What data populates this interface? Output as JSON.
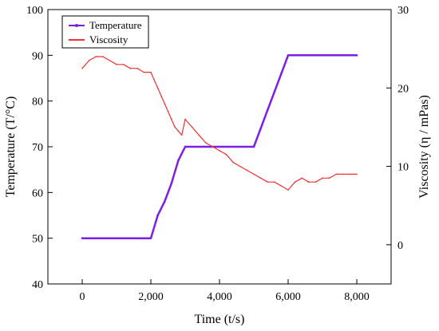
{
  "chart_data": {
    "type": "line",
    "xlabel": "Time (t/s)",
    "ylabel_left": "Temperature (T/°C)",
    "ylabel_right": "Viscosity (η / mPas)",
    "xlim": [
      -1000,
      9000
    ],
    "ylim_left": [
      40,
      100
    ],
    "ylim_right": [
      -5,
      30
    ],
    "x_ticks": [
      0,
      2000,
      4000,
      6000,
      8000
    ],
    "x_tick_labels": [
      "0",
      "2,000",
      "4,000",
      "6,000",
      "8,000"
    ],
    "y_left_ticks": [
      40,
      50,
      60,
      70,
      80,
      90,
      100
    ],
    "y_left_tick_labels": [
      "40",
      "50",
      "60",
      "70",
      "80",
      "90",
      "100"
    ],
    "y_right_ticks": [
      0,
      10,
      20,
      30
    ],
    "y_right_tick_labels": [
      "0",
      "10",
      "20",
      "30"
    ],
    "grid": false,
    "legend_position": "top-left",
    "series": [
      {
        "name": "Temperature",
        "axis": "left",
        "color": "#7b1fe8",
        "x": [
          0,
          2000,
          2200,
          2400,
          2600,
          2800,
          3000,
          5000,
          5200,
          5400,
          5600,
          5800,
          6000,
          8000
        ],
        "y": [
          50,
          50,
          55,
          58,
          62,
          67,
          70,
          70,
          74,
          78,
          82,
          86,
          90,
          90
        ]
      },
      {
        "name": "Viscosity",
        "axis": "right",
        "color": "#ee3333",
        "x": [
          0,
          200,
          400,
          600,
          800,
          1000,
          1200,
          1400,
          1600,
          1800,
          2000,
          2100,
          2200,
          2300,
          2400,
          2500,
          2600,
          2700,
          2800,
          2900,
          3000,
          3200,
          3400,
          3600,
          3800,
          4000,
          4200,
          4400,
          4600,
          4800,
          5000,
          5200,
          5400,
          5600,
          5800,
          6000,
          6200,
          6400,
          6600,
          6800,
          7000,
          7200,
          7400,
          7600,
          7800,
          8000
        ],
        "y": [
          22.5,
          23.5,
          24,
          24,
          23.5,
          23,
          23,
          22.5,
          22.5,
          22,
          22,
          21,
          20,
          19,
          18,
          17,
          16,
          15,
          14.5,
          14,
          16,
          15,
          14,
          13,
          12.5,
          12,
          11.5,
          10.5,
          10,
          9.5,
          9,
          8.5,
          8,
          8,
          7.5,
          7,
          8,
          8.5,
          8,
          8,
          8.5,
          8.5,
          9,
          9,
          9,
          9
        ]
      }
    ]
  }
}
